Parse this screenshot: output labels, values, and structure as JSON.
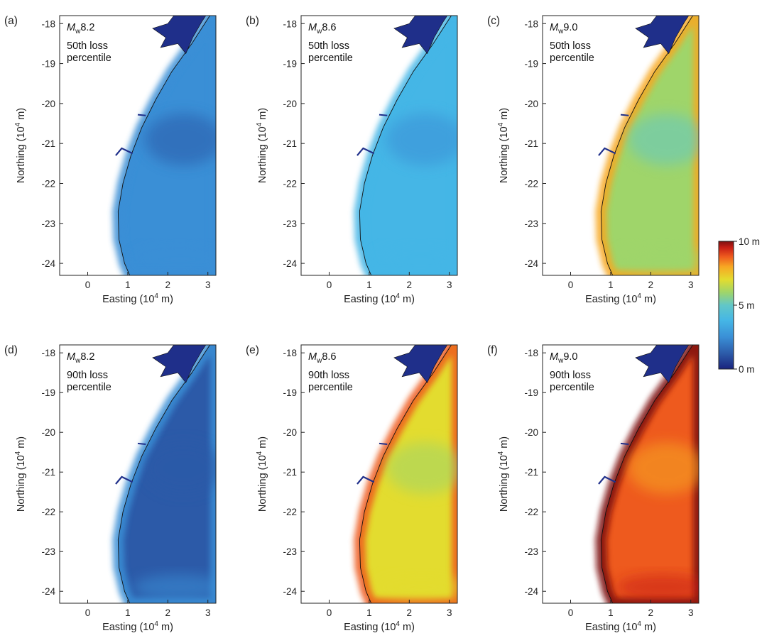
{
  "figure": {
    "panels": [
      {
        "label": "(a)",
        "magnitude": "8.2",
        "line2": "50th loss",
        "line3": "percentile"
      },
      {
        "label": "(b)",
        "magnitude": "8.6",
        "line2": "50th loss",
        "line3": "percentile"
      },
      {
        "label": "(c)",
        "magnitude": "9.0",
        "line2": "50th loss",
        "line3": "percentile"
      },
      {
        "label": "(d)",
        "magnitude": "8.2",
        "line2": "90th loss",
        "line3": "percentile"
      },
      {
        "label": "(e)",
        "magnitude": "8.6",
        "line2": "90th loss",
        "line3": "percentile"
      },
      {
        "label": "(f)",
        "magnitude": "9.0",
        "line2": "90th loss",
        "line3": "percentile"
      }
    ],
    "mag_prefix": "M",
    "mag_sub": "w",
    "xlabel_pre": "Easting (10",
    "xlabel_exp": "4",
    "xlabel_post": " m)",
    "ylabel_pre": "Northing (10",
    "ylabel_exp": "4",
    "ylabel_post": " m)",
    "x_ticks": [
      "0",
      "1",
      "2",
      "3"
    ],
    "y_ticks": [
      "-18",
      "-19",
      "-20",
      "-21",
      "-22",
      "-23",
      "-24"
    ],
    "colorbar": {
      "top": "10 m",
      "mid": "5 m",
      "bottom": "0 m"
    }
  },
  "chart_data": [
    {
      "type": "heatmap",
      "panel": "(a)",
      "xlim": [
        -0.7,
        3.2
      ],
      "ylim": [
        -24.3,
        -17.8
      ],
      "x_ticks": [
        0,
        1,
        2,
        3
      ],
      "y_ticks": [
        -18,
        -19,
        -20,
        -21,
        -22,
        -23,
        -24
      ],
      "value_range_m": [
        0,
        10
      ],
      "typical_value_m": 1.5
    },
    {
      "type": "heatmap",
      "panel": "(b)",
      "xlim": [
        -0.7,
        3.2
      ],
      "ylim": [
        -24.3,
        -17.8
      ],
      "x_ticks": [
        0,
        1,
        2,
        3
      ],
      "y_ticks": [
        -18,
        -19,
        -20,
        -21,
        -22,
        -23,
        -24
      ],
      "value_range_m": [
        0,
        10
      ],
      "typical_value_m": 2.5
    },
    {
      "type": "heatmap",
      "panel": "(c)",
      "xlim": [
        -0.7,
        3.2
      ],
      "ylim": [
        -24.3,
        -17.8
      ],
      "x_ticks": [
        0,
        1,
        2,
        3
      ],
      "y_ticks": [
        -18,
        -19,
        -20,
        -21,
        -22,
        -23,
        -24
      ],
      "value_range_m": [
        0,
        10
      ],
      "typical_value_m": 4.5
    },
    {
      "type": "heatmap",
      "panel": "(d)",
      "xlim": [
        -0.7,
        3.2
      ],
      "ylim": [
        -24.3,
        -17.8
      ],
      "x_ticks": [
        0,
        1,
        2,
        3
      ],
      "y_ticks": [
        -18,
        -19,
        -20,
        -21,
        -22,
        -23,
        -24
      ],
      "value_range_m": [
        0,
        10
      ],
      "typical_value_m": 1.3
    },
    {
      "type": "heatmap",
      "panel": "(e)",
      "xlim": [
        -0.7,
        3.2
      ],
      "ylim": [
        -24.3,
        -17.8
      ],
      "x_ticks": [
        0,
        1,
        2,
        3
      ],
      "y_ticks": [
        -18,
        -19,
        -20,
        -21,
        -22,
        -23,
        -24
      ],
      "value_range_m": [
        0,
        10
      ],
      "typical_value_m": 5.5
    },
    {
      "type": "heatmap",
      "panel": "(f)",
      "xlim": [
        -0.7,
        3.2
      ],
      "ylim": [
        -24.3,
        -17.8
      ],
      "x_ticks": [
        0,
        1,
        2,
        3
      ],
      "y_ticks": [
        -18,
        -19,
        -20,
        -21,
        -22,
        -23,
        -24
      ],
      "value_range_m": [
        0,
        10
      ],
      "typical_value_m": 8.0
    }
  ],
  "colors": {
    "colormap": [
      "#1a237e",
      "#2c5aa8",
      "#3a8fd6",
      "#45b6e6",
      "#62c7c7",
      "#9fd56a",
      "#e3dc2f",
      "#f7a823",
      "#ee5a1e",
      "#c81e15",
      "#7d1010"
    ]
  }
}
